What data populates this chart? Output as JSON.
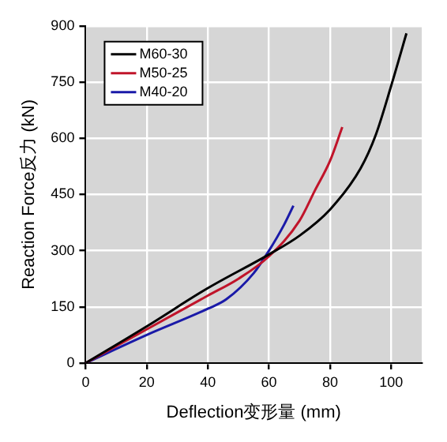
{
  "chart_data": {
    "type": "line",
    "xlabel": "Deflection变形量 (mm)",
    "ylabel": "Reaction Force反力 (kN)",
    "xlim": [
      0,
      110
    ],
    "xticks": [
      0,
      20,
      40,
      60,
      80,
      100
    ],
    "ylim": [
      0,
      900
    ],
    "yticks": [
      0,
      150,
      300,
      450,
      600,
      750,
      900
    ],
    "grid": true,
    "legend": "top left",
    "series": [
      {
        "name": "M60-30",
        "color": "#000000",
        "x": [
          0,
          20,
          40,
          60,
          70,
          80,
          90,
          95,
          100,
          105
        ],
        "values": [
          0,
          98,
          200,
          290,
          340,
          410,
          520,
          610,
          740,
          880
        ]
      },
      {
        "name": "M50-25",
        "color": "#c0142a",
        "x": [
          0,
          20,
          40,
          50,
          60,
          70,
          75,
          80,
          84
        ],
        "values": [
          0,
          90,
          180,
          225,
          285,
          380,
          460,
          540,
          630
        ]
      },
      {
        "name": "M40-20",
        "color": "#1a1aa8",
        "x": [
          0,
          20,
          40,
          46,
          55,
          60,
          65,
          68
        ],
        "values": [
          0,
          75,
          145,
          170,
          240,
          300,
          370,
          420
        ]
      }
    ]
  }
}
